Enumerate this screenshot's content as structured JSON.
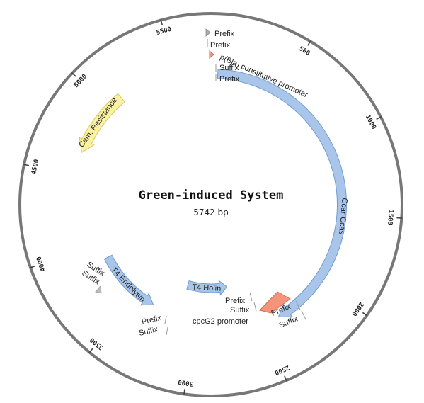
{
  "map": {
    "title": "Green-induced System",
    "length_label": "5742 bp",
    "total_bp": 5742,
    "ticks": [
      "500",
      "1000",
      "1500",
      "2000",
      "2500",
      "3000",
      "3500",
      "4000",
      "4500",
      "5000",
      "5500"
    ]
  },
  "features": [
    {
      "id": "ccar-ccas",
      "label": "Ccar-Ccas",
      "type": "cds",
      "color": "#a9c6ea",
      "stroke": "#6f9bd0"
    },
    {
      "id": "cam-resistance",
      "label": "Cam. Resistance",
      "type": "cds",
      "color": "#faf2a0",
      "stroke": "#d6c85a"
    },
    {
      "id": "t4-holin",
      "label": "T4 Holin",
      "type": "cds",
      "color": "#a9c6ea",
      "stroke": "#6f9bd0"
    },
    {
      "id": "t4-endolysin",
      "label": "T4 Endolysin",
      "type": "cds",
      "color": "#a9c6ea",
      "stroke": "#6f9bd0"
    },
    {
      "id": "pbla-promoter",
      "label": "p(Bla) constitutive promoter",
      "type": "promoter",
      "color": "#f3957a",
      "stroke": "#d66b50"
    },
    {
      "id": "cpcg2-promoter",
      "label": "cpcG2 promoter",
      "type": "promoter",
      "color": "#f3957a",
      "stroke": "#d66b50"
    }
  ],
  "markers": {
    "prefix": "Prefix",
    "suffix": "Suffix"
  }
}
